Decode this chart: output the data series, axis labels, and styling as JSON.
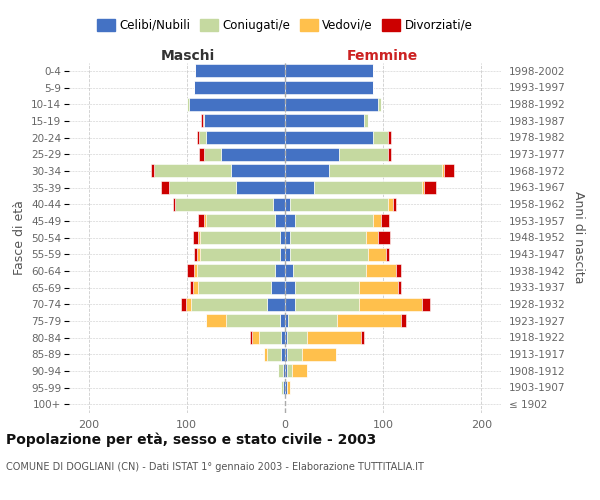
{
  "age_groups": [
    "100+",
    "95-99",
    "90-94",
    "85-89",
    "80-84",
    "75-79",
    "70-74",
    "65-69",
    "60-64",
    "55-59",
    "50-54",
    "45-49",
    "40-44",
    "35-39",
    "30-34",
    "25-29",
    "20-24",
    "15-19",
    "10-14",
    "5-9",
    "0-4"
  ],
  "birth_years": [
    "≤ 1902",
    "1903-1907",
    "1908-1912",
    "1913-1917",
    "1918-1922",
    "1923-1927",
    "1928-1932",
    "1933-1937",
    "1938-1942",
    "1943-1947",
    "1948-1952",
    "1953-1957",
    "1958-1962",
    "1963-1967",
    "1968-1972",
    "1973-1977",
    "1978-1982",
    "1983-1987",
    "1988-1992",
    "1993-1997",
    "1998-2002"
  ],
  "maschi": {
    "celibi": [
      0,
      2,
      2,
      4,
      4,
      5,
      18,
      14,
      10,
      5,
      5,
      10,
      12,
      50,
      55,
      65,
      80,
      82,
      98,
      93,
      92
    ],
    "coniugati": [
      0,
      2,
      5,
      14,
      22,
      55,
      78,
      75,
      80,
      82,
      82,
      70,
      100,
      68,
      78,
      18,
      8,
      2,
      2,
      0,
      0
    ],
    "vedovi": [
      0,
      0,
      0,
      3,
      8,
      20,
      5,
      5,
      3,
      3,
      2,
      2,
      0,
      0,
      0,
      0,
      0,
      0,
      0,
      0,
      0
    ],
    "divorziati": [
      0,
      0,
      0,
      0,
      2,
      0,
      5,
      3,
      7,
      3,
      5,
      7,
      2,
      8,
      3,
      5,
      2,
      2,
      0,
      0,
      0
    ]
  },
  "femmine": {
    "nubili": [
      0,
      2,
      2,
      2,
      2,
      3,
      10,
      10,
      8,
      5,
      5,
      10,
      5,
      30,
      45,
      55,
      90,
      80,
      95,
      90,
      90
    ],
    "coniugate": [
      0,
      0,
      5,
      15,
      20,
      50,
      65,
      65,
      75,
      80,
      78,
      80,
      100,
      110,
      115,
      50,
      15,
      5,
      3,
      0,
      0
    ],
    "vedove": [
      0,
      3,
      15,
      35,
      55,
      65,
      65,
      40,
      30,
      18,
      12,
      8,
      5,
      2,
      2,
      0,
      0,
      0,
      0,
      0,
      0
    ],
    "divorziate": [
      0,
      0,
      0,
      0,
      3,
      5,
      8,
      3,
      5,
      3,
      12,
      8,
      3,
      12,
      10,
      3,
      3,
      0,
      0,
      0,
      0
    ]
  },
  "colors": {
    "celibi_nubili": "#4472c4",
    "coniugati": "#c5d9a0",
    "vedovi": "#ffc04c",
    "divorziati": "#cc0000"
  },
  "xlim": 220,
  "title": "Popolazione per età, sesso e stato civile - 2003",
  "subtitle": "COMUNE DI DOGLIANI (CN) - Dati ISTAT 1° gennaio 2003 - Elaborazione TUTTITALIA.IT",
  "ylabel_left": "Fasce di età",
  "ylabel_right": "Anni di nascita",
  "xlabel_maschi": "Maschi",
  "xlabel_femmine": "Femmine",
  "legend_labels": [
    "Celibi/Nubili",
    "Coniugati/e",
    "Vedovi/e",
    "Divorziati/e"
  ],
  "background_color": "#ffffff",
  "grid_color": "#cccccc"
}
